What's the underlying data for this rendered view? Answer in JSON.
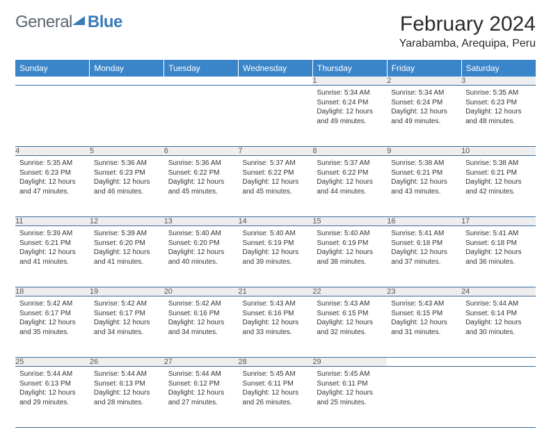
{
  "logo": {
    "part1": "General",
    "part2": "Blue"
  },
  "title": "February 2024",
  "location": "Yarabamba, Arequipa, Peru",
  "colors": {
    "header_bg": "#3a85c9",
    "header_text": "#ffffff",
    "daynum_bg": "#eeeeee",
    "row_border": "#3a6a9a",
    "logo_gray": "#5a6570",
    "logo_blue": "#3a7ab8"
  },
  "weekdays": [
    "Sunday",
    "Monday",
    "Tuesday",
    "Wednesday",
    "Thursday",
    "Friday",
    "Saturday"
  ],
  "weeks": [
    [
      null,
      null,
      null,
      null,
      {
        "n": "1",
        "sr": "5:34 AM",
        "ss": "6:24 PM",
        "dl": "12 hours and 49 minutes."
      },
      {
        "n": "2",
        "sr": "5:34 AM",
        "ss": "6:24 PM",
        "dl": "12 hours and 49 minutes."
      },
      {
        "n": "3",
        "sr": "5:35 AM",
        "ss": "6:23 PM",
        "dl": "12 hours and 48 minutes."
      }
    ],
    [
      {
        "n": "4",
        "sr": "5:35 AM",
        "ss": "6:23 PM",
        "dl": "12 hours and 47 minutes."
      },
      {
        "n": "5",
        "sr": "5:36 AM",
        "ss": "6:23 PM",
        "dl": "12 hours and 46 minutes."
      },
      {
        "n": "6",
        "sr": "5:36 AM",
        "ss": "6:22 PM",
        "dl": "12 hours and 45 minutes."
      },
      {
        "n": "7",
        "sr": "5:37 AM",
        "ss": "6:22 PM",
        "dl": "12 hours and 45 minutes."
      },
      {
        "n": "8",
        "sr": "5:37 AM",
        "ss": "6:22 PM",
        "dl": "12 hours and 44 minutes."
      },
      {
        "n": "9",
        "sr": "5:38 AM",
        "ss": "6:21 PM",
        "dl": "12 hours and 43 minutes."
      },
      {
        "n": "10",
        "sr": "5:38 AM",
        "ss": "6:21 PM",
        "dl": "12 hours and 42 minutes."
      }
    ],
    [
      {
        "n": "11",
        "sr": "5:39 AM",
        "ss": "6:21 PM",
        "dl": "12 hours and 41 minutes."
      },
      {
        "n": "12",
        "sr": "5:39 AM",
        "ss": "6:20 PM",
        "dl": "12 hours and 41 minutes."
      },
      {
        "n": "13",
        "sr": "5:40 AM",
        "ss": "6:20 PM",
        "dl": "12 hours and 40 minutes."
      },
      {
        "n": "14",
        "sr": "5:40 AM",
        "ss": "6:19 PM",
        "dl": "12 hours and 39 minutes."
      },
      {
        "n": "15",
        "sr": "5:40 AM",
        "ss": "6:19 PM",
        "dl": "12 hours and 38 minutes."
      },
      {
        "n": "16",
        "sr": "5:41 AM",
        "ss": "6:18 PM",
        "dl": "12 hours and 37 minutes."
      },
      {
        "n": "17",
        "sr": "5:41 AM",
        "ss": "6:18 PM",
        "dl": "12 hours and 36 minutes."
      }
    ],
    [
      {
        "n": "18",
        "sr": "5:42 AM",
        "ss": "6:17 PM",
        "dl": "12 hours and 35 minutes."
      },
      {
        "n": "19",
        "sr": "5:42 AM",
        "ss": "6:17 PM",
        "dl": "12 hours and 34 minutes."
      },
      {
        "n": "20",
        "sr": "5:42 AM",
        "ss": "6:16 PM",
        "dl": "12 hours and 34 minutes."
      },
      {
        "n": "21",
        "sr": "5:43 AM",
        "ss": "6:16 PM",
        "dl": "12 hours and 33 minutes."
      },
      {
        "n": "22",
        "sr": "5:43 AM",
        "ss": "6:15 PM",
        "dl": "12 hours and 32 minutes."
      },
      {
        "n": "23",
        "sr": "5:43 AM",
        "ss": "6:15 PM",
        "dl": "12 hours and 31 minutes."
      },
      {
        "n": "24",
        "sr": "5:44 AM",
        "ss": "6:14 PM",
        "dl": "12 hours and 30 minutes."
      }
    ],
    [
      {
        "n": "25",
        "sr": "5:44 AM",
        "ss": "6:13 PM",
        "dl": "12 hours and 29 minutes."
      },
      {
        "n": "26",
        "sr": "5:44 AM",
        "ss": "6:13 PM",
        "dl": "12 hours and 28 minutes."
      },
      {
        "n": "27",
        "sr": "5:44 AM",
        "ss": "6:12 PM",
        "dl": "12 hours and 27 minutes."
      },
      {
        "n": "28",
        "sr": "5:45 AM",
        "ss": "6:11 PM",
        "dl": "12 hours and 26 minutes."
      },
      {
        "n": "29",
        "sr": "5:45 AM",
        "ss": "6:11 PM",
        "dl": "12 hours and 25 minutes."
      },
      null,
      null
    ]
  ],
  "labels": {
    "sunrise": "Sunrise:",
    "sunset": "Sunset:",
    "daylight": "Daylight:"
  }
}
